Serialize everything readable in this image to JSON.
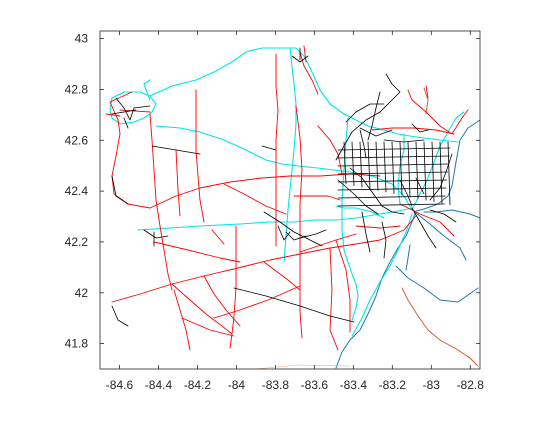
{
  "map": {
    "x_ticks": [
      "-84.6",
      "-84.4",
      "-84.2",
      "-84",
      "-83.8",
      "-83.6",
      "-83.4",
      "-83.2",
      "-83",
      "-82.8"
    ],
    "y_ticks": [
      "43",
      "42.8",
      "42.6",
      "42.4",
      "42.2",
      "42",
      "41.8"
    ],
    "x_tick_values": [
      -84.6,
      -84.4,
      -84.2,
      -84.0,
      -83.8,
      -83.6,
      -83.4,
      -83.2,
      -83.0,
      -82.8
    ],
    "y_tick_values": [
      43.0,
      42.8,
      42.6,
      42.4,
      42.2,
      42.0,
      41.8
    ],
    "xlim": [
      -84.7,
      -82.75
    ],
    "ylim": [
      41.7,
      43.03
    ],
    "layer_colors": {
      "local_roads": "#000000",
      "state_highways": "#ff0000",
      "interstates": "#00e5e5",
      "shoreline": "#1f77b4",
      "rivers": "#d95319"
    }
  }
}
